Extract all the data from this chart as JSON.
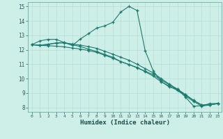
{
  "xlabel": "Humidex (Indice chaleur)",
  "bg_color": "#ceeee8",
  "line_color": "#1a7a6e",
  "grid_color": "#b8ddd8",
  "xlim": [
    -0.5,
    23.5
  ],
  "ylim": [
    7.7,
    15.3
  ],
  "xticks": [
    0,
    1,
    2,
    3,
    4,
    5,
    6,
    7,
    8,
    9,
    10,
    11,
    12,
    13,
    14,
    15,
    16,
    17,
    18,
    19,
    20,
    21,
    22,
    23
  ],
  "yticks": [
    8,
    9,
    10,
    11,
    12,
    13,
    14,
    15
  ],
  "line1_x": [
    0,
    1,
    2,
    3,
    4,
    5,
    6,
    7,
    8,
    9,
    10,
    11,
    12,
    13,
    14,
    15,
    16,
    17,
    18,
    19,
    20,
    21,
    22,
    23
  ],
  "line1_y": [
    12.35,
    12.62,
    12.72,
    12.72,
    12.5,
    12.3,
    12.75,
    13.12,
    13.5,
    13.65,
    13.9,
    14.62,
    15.0,
    14.72,
    11.95,
    10.55,
    9.8,
    9.42,
    9.28,
    8.72,
    8.1,
    8.12,
    8.28,
    8.28
  ],
  "line2_x": [
    0,
    1,
    2,
    3,
    4,
    5,
    6,
    7,
    8,
    9,
    10,
    11,
    12,
    13,
    14,
    15,
    16,
    17,
    18,
    19,
    20,
    21,
    22,
    23
  ],
  "line2_y": [
    12.35,
    12.3,
    12.28,
    12.25,
    12.2,
    12.12,
    12.05,
    11.95,
    11.82,
    11.62,
    11.42,
    11.18,
    10.98,
    10.75,
    10.52,
    10.28,
    9.9,
    9.58,
    9.25,
    8.88,
    8.5,
    8.18,
    8.18,
    8.28
  ],
  "line3_x": [
    0,
    1,
    2,
    3,
    4,
    5,
    6,
    7,
    8,
    9,
    10,
    11,
    12,
    13,
    14,
    15,
    16,
    17,
    18,
    19,
    20,
    21,
    22,
    23
  ],
  "line3_y": [
    12.35,
    12.32,
    12.38,
    12.45,
    12.48,
    12.4,
    12.32,
    12.22,
    12.1,
    11.9,
    11.7,
    11.48,
    11.28,
    11.0,
    10.7,
    10.4,
    10.0,
    9.62,
    9.28,
    8.9,
    8.5,
    8.18,
    8.18,
    8.28
  ],
  "line4_x": [
    0,
    1,
    2,
    3,
    4,
    5,
    6,
    7,
    8,
    9,
    10,
    11,
    12,
    13,
    14,
    15,
    16,
    17,
    18,
    19,
    20,
    21,
    22,
    23
  ],
  "line4_y": [
    12.35,
    12.3,
    12.38,
    12.48,
    12.5,
    12.35,
    12.22,
    12.05,
    11.88,
    11.68,
    11.48,
    11.18,
    10.98,
    10.78,
    10.48,
    10.18,
    9.78,
    9.48,
    9.18,
    8.8,
    8.42,
    8.1,
    8.18,
    8.28
  ]
}
